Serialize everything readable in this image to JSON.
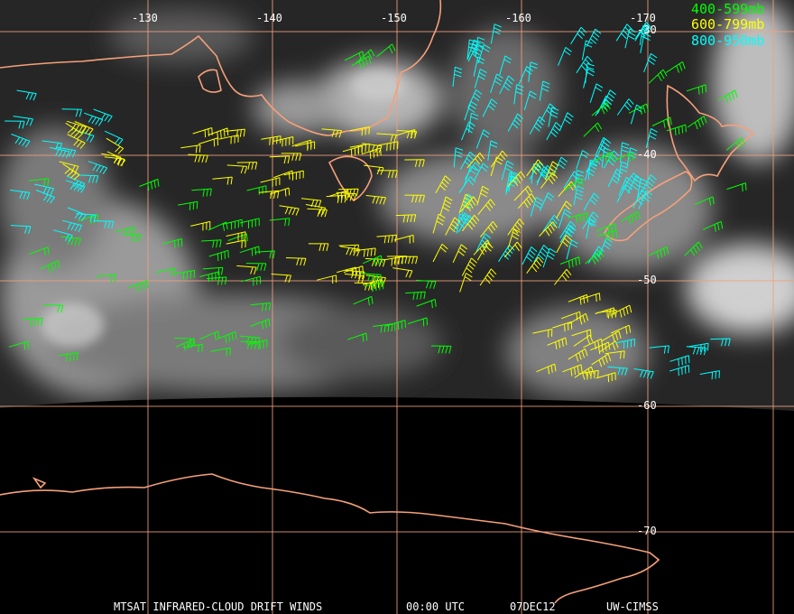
{
  "map": {
    "longitude_labels": [
      "-130",
      "-140",
      "-150",
      "-160",
      "-170"
    ],
    "latitude_labels": [
      "-30",
      "-40",
      "-50",
      "-60",
      "-70"
    ],
    "legend": [
      {
        "label": "400-599mb",
        "color": "#00ff00"
      },
      {
        "label": "600-799mb",
        "color": "#ffff00"
      },
      {
        "label": "800-950mb",
        "color": "#00ffff"
      }
    ],
    "footer": [
      "MTSAT INFRARED-CLOUD DRIFT WINDS",
      "00:00 UTC",
      "07DEC12",
      "UW-CIMSS"
    ]
  }
}
